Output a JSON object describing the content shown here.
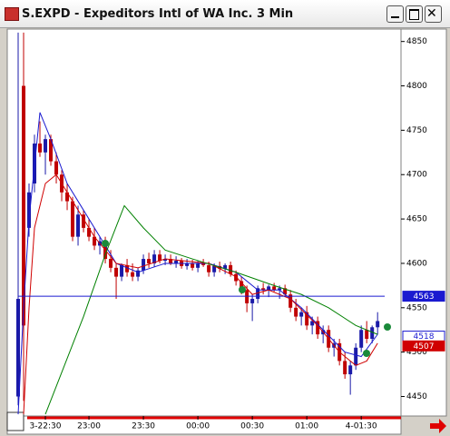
{
  "window": {
    "title": "S.EXPD - Expeditors Intl of WA Inc. 3 Min"
  },
  "chart_data": {
    "type": "candlestick",
    "xlim": [
      -2,
      70.3
    ],
    "xticks": [
      {
        "value": 5,
        "label": "3-22:30"
      },
      {
        "value": 13,
        "label": "23:00"
      },
      {
        "value": 23,
        "label": "23:30"
      },
      {
        "value": 33,
        "label": "00:00"
      },
      {
        "value": 43,
        "label": "00:30"
      },
      {
        "value": 53,
        "label": "01:00"
      },
      {
        "value": 63,
        "label": "4-01:30"
      }
    ],
    "ylim": [
      4428,
      4864
    ],
    "yticks": [
      4450,
      4500,
      4550,
      4600,
      4650,
      4700,
      4750,
      4800,
      4850
    ],
    "up_color": "#1a1aa8",
    "down_color": "#c00000",
    "open": [
      4450,
      4800,
      4640,
      4690,
      4735,
      4725,
      4740,
      4715,
      4700,
      4680,
      4670,
      4630,
      4655,
      4640,
      4630,
      4620,
      4625,
      4605,
      4595,
      4585,
      4598,
      4590,
      4585,
      4592,
      4605,
      4600,
      4610,
      4603,
      4605,
      4600,
      4603,
      4597,
      4600,
      4595,
      4600,
      4598,
      4590,
      4597,
      4594,
      4598,
      4588,
      4580,
      4570,
      4555,
      4560,
      4572,
      4570,
      4574,
      4570,
      4572,
      4565,
      4550,
      4540,
      4545,
      4530,
      4535,
      4520,
      4525,
      4505,
      4510,
      4490,
      4475,
      4485,
      4505,
      4525,
      4515,
      4528
    ],
    "high": [
      4860,
      4860,
      4690,
      4745,
      4760,
      4745,
      4745,
      4725,
      4705,
      4690,
      4675,
      4665,
      4660,
      4650,
      4640,
      4630,
      4630,
      4615,
      4600,
      4600,
      4605,
      4600,
      4595,
      4610,
      4612,
      4615,
      4615,
      4610,
      4610,
      4608,
      4606,
      4605,
      4604,
      4603,
      4605,
      4602,
      4600,
      4602,
      4600,
      4602,
      4592,
      4585,
      4575,
      4565,
      4575,
      4578,
      4576,
      4578,
      4575,
      4576,
      4570,
      4560,
      4550,
      4552,
      4540,
      4540,
      4530,
      4530,
      4515,
      4515,
      4500,
      4490,
      4510,
      4530,
      4535,
      4530,
      4545
    ],
    "low": [
      4440,
      4445,
      4630,
      4680,
      4720,
      4700,
      4710,
      4690,
      4670,
      4660,
      4625,
      4620,
      4635,
      4625,
      4615,
      4610,
      4600,
      4590,
      4560,
      4580,
      4585,
      4580,
      4580,
      4588,
      4595,
      4596,
      4600,
      4598,
      4598,
      4595,
      4594,
      4593,
      4592,
      4590,
      4596,
      4585,
      4585,
      4590,
      4588,
      4585,
      4575,
      4565,
      4545,
      4535,
      4555,
      4565,
      4562,
      4568,
      4560,
      4562,
      4545,
      4535,
      4530,
      4525,
      4520,
      4515,
      4510,
      4500,
      4495,
      4485,
      4470,
      4452,
      4480,
      4500,
      4510,
      4510,
      4520
    ],
    "close": [
      4560,
      4530,
      4680,
      4735,
      4725,
      4740,
      4715,
      4700,
      4680,
      4670,
      4630,
      4655,
      4640,
      4630,
      4620,
      4625,
      4605,
      4595,
      4585,
      4598,
      4590,
      4585,
      4592,
      4605,
      4600,
      4610,
      4603,
      4605,
      4600,
      4603,
      4597,
      4600,
      4595,
      4600,
      4598,
      4590,
      4597,
      4594,
      4598,
      4588,
      4580,
      4570,
      4555,
      4560,
      4572,
      4570,
      4574,
      4570,
      4572,
      4565,
      4550,
      4540,
      4545,
      4530,
      4535,
      4520,
      4525,
      4505,
      4510,
      4490,
      4475,
      4485,
      4505,
      4525,
      4515,
      4528,
      4535
    ],
    "lines": [
      {
        "color": "#1a1ad0",
        "x": [
          0,
          1,
          2,
          4,
          6,
          9,
          12,
          15,
          18,
          22,
          27,
          35,
          40,
          44,
          48,
          52,
          56,
          60,
          63,
          66
        ],
        "values": [
          4430,
          4550,
          4650,
          4770,
          4740,
          4690,
          4660,
          4630,
          4600,
          4590,
          4600,
          4600,
          4590,
          4570,
          4570,
          4550,
          4525,
          4500,
          4495,
          4520
        ]
      },
      {
        "color": "#d00000",
        "x": [
          1,
          2,
          3,
          5,
          7,
          10,
          14,
          18,
          22,
          27,
          35,
          40,
          43,
          46,
          50,
          55,
          59,
          62,
          64,
          66
        ],
        "values": [
          4430,
          4550,
          4640,
          4690,
          4700,
          4670,
          4630,
          4600,
          4595,
          4605,
          4600,
          4585,
          4565,
          4570,
          4560,
          4530,
          4500,
          4485,
          4490,
          4510
        ]
      },
      {
        "color": "#008000",
        "x": [
          5,
          12,
          16,
          19.5,
          23,
          27,
          32,
          40,
          47,
          52,
          57,
          62,
          66
        ],
        "values": [
          4430,
          4540,
          4610,
          4665,
          4640,
          4615,
          4605,
          4590,
          4575,
          4565,
          4550,
          4530,
          4520
        ]
      }
    ],
    "price_markers": [
      {
        "value": 4563,
        "color": "#1a1ad0",
        "filled": true,
        "line": true
      },
      {
        "value": 4518,
        "color": "#1a1ad0",
        "filled": false,
        "line": false
      },
      {
        "value": 4507,
        "color": "#d00000",
        "filled": true,
        "line": false
      }
    ]
  }
}
